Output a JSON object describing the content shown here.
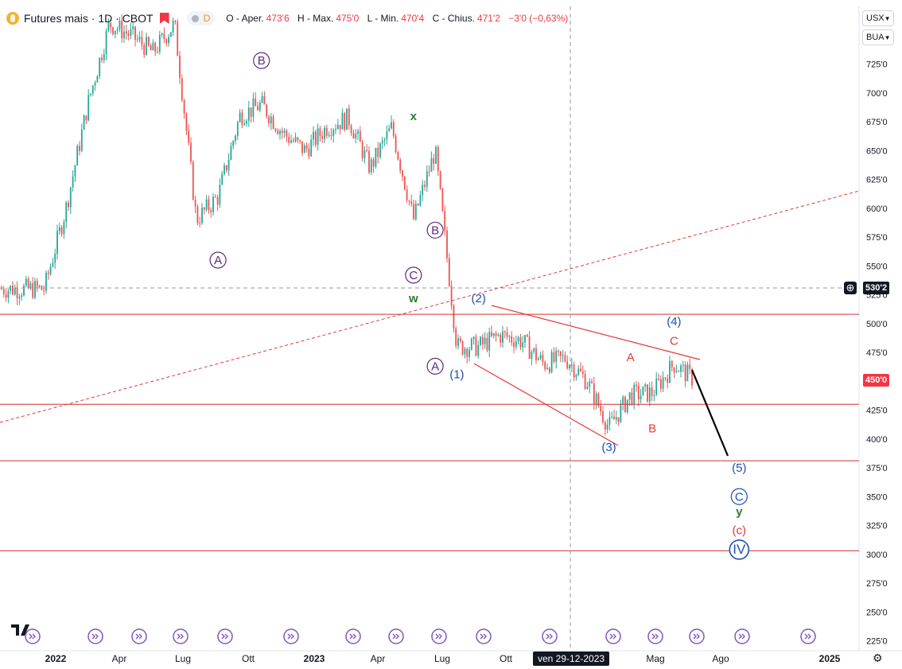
{
  "header": {
    "symbol": "Futures mais · 1D · CBOT",
    "pill_label": "D",
    "ohlc": [
      {
        "label": "O - Aper.",
        "value": "473'6"
      },
      {
        "label": "H - Max.",
        "value": "475'0"
      },
      {
        "label": "L - Min.",
        "value": "470'4"
      },
      {
        "label": "C - Chius.",
        "value": "471'2"
      },
      {
        "label": "",
        "value": "−3'0 (−0,63%)"
      }
    ]
  },
  "price_axis": {
    "currency": "USX",
    "unit": "BUA",
    "ticks": [
      "725'0",
      "700'0",
      "675'0",
      "650'0",
      "625'0",
      "600'0",
      "575'0",
      "550'0",
      "525'0",
      "500'0",
      "475'0",
      "450'0",
      "425'0",
      "400'0",
      "375'0",
      "350'0",
      "325'0",
      "300'0",
      "275'0",
      "250'0",
      "225'0"
    ],
    "crosshair_price": "530'2",
    "last_price": "450'0"
  },
  "time_axis": {
    "ticks": [
      "2022",
      "Apr",
      "Lug",
      "Ott",
      "2023",
      "Apr",
      "Lug",
      "Ott",
      "Mag",
      "Ago",
      "2025"
    ],
    "crosshair_label": "ven 29-12-2023"
  },
  "colors": {
    "up": "#26a69a",
    "down": "#ef5350",
    "level": "#d32f2f",
    "wave_purple": "#5b2a86",
    "wave_blue": "#1e4fb5",
    "wave_green": "#2e7d32",
    "wave_red": "#e53935"
  },
  "chart_data": {
    "type": "candlestick",
    "title": "Futures mais · 1D · CBOT",
    "price_range": [
      225,
      755
    ],
    "horizontal_levels": [
      508,
      430,
      381,
      303
    ],
    "wave_labels": [
      {
        "text": "B",
        "style": "circle",
        "color": "purple",
        "date": "2022-10",
        "price": 728
      },
      {
        "text": "A",
        "style": "circle",
        "color": "purple",
        "date": "2022-08",
        "price": 555
      },
      {
        "text": "x",
        "style": "plain",
        "color": "green",
        "date": "2023-05",
        "price": 680
      },
      {
        "text": "C",
        "style": "circle",
        "color": "purple",
        "date": "2023-05",
        "price": 542
      },
      {
        "text": "w",
        "style": "plain",
        "color": "green",
        "date": "2023-05",
        "price": 522
      },
      {
        "text": "B",
        "style": "circle",
        "color": "purple",
        "date": "2023-06",
        "price": 581
      },
      {
        "text": "A",
        "style": "circle",
        "color": "purple",
        "date": "2023-06",
        "price": 463
      },
      {
        "text": "(1)",
        "style": "plain",
        "color": "blue",
        "date": "2023-07",
        "price": 456
      },
      {
        "text": "(2)",
        "style": "plain",
        "color": "blue",
        "date": "2023-08",
        "price": 522
      },
      {
        "text": "(3)",
        "style": "plain",
        "color": "blue",
        "date": "2024-02",
        "price": 393
      },
      {
        "text": "A",
        "style": "plain",
        "color": "red",
        "date": "2024-03",
        "price": 471
      },
      {
        "text": "B",
        "style": "plain",
        "color": "red",
        "date": "2024-04",
        "price": 409
      },
      {
        "text": "(4)",
        "style": "plain",
        "color": "blue",
        "date": "2024-05",
        "price": 502
      },
      {
        "text": "C",
        "style": "plain",
        "color": "red",
        "date": "2024-05",
        "price": 485
      },
      {
        "text": "(5)",
        "style": "plain",
        "color": "blue",
        "date": "2024-08",
        "price": 375
      },
      {
        "text": "C",
        "style": "circle",
        "color": "blue",
        "date": "2024-08",
        "price": 350
      },
      {
        "text": "y",
        "style": "plain",
        "color": "green",
        "date": "2024-08",
        "price": 337
      },
      {
        "text": "(c)",
        "style": "plain",
        "color": "red",
        "date": "2024-08",
        "price": 321
      },
      {
        "text": "IV",
        "style": "circle",
        "color": "blue",
        "date": "2024-08",
        "price": 304
      }
    ],
    "series": [
      {
        "name": "Futures mais",
        "points": [
          [
            "2021-12",
            530
          ],
          [
            "2022-01",
            600
          ],
          [
            "2022-02",
            690
          ],
          [
            "2022-03",
            760
          ],
          [
            "2022-04",
            750
          ],
          [
            "2022-05",
            735
          ],
          [
            "2022-06",
            760
          ],
          [
            "2022-07",
            590
          ],
          [
            "2022-08",
            610
          ],
          [
            "2022-09",
            680
          ],
          [
            "2022-10",
            690
          ],
          [
            "2022-11",
            665
          ],
          [
            "2022-12",
            650
          ],
          [
            "2023-01",
            670
          ],
          [
            "2023-02",
            678
          ],
          [
            "2023-03",
            635
          ],
          [
            "2023-04",
            670
          ],
          [
            "2023-05",
            590
          ],
          [
            "2023-06",
            650
          ],
          [
            "2023-07",
            480
          ],
          [
            "2023-08",
            480
          ],
          [
            "2023-09",
            490
          ],
          [
            "2023-10",
            485
          ],
          [
            "2023-11",
            465
          ],
          [
            "2023-12",
            470
          ],
          [
            "2024-01",
            450
          ],
          [
            "2024-02",
            410
          ],
          [
            "2024-03",
            438
          ],
          [
            "2024-04",
            440
          ],
          [
            "2024-05",
            465
          ],
          [
            "2024-06",
            450
          ]
        ]
      }
    ]
  }
}
